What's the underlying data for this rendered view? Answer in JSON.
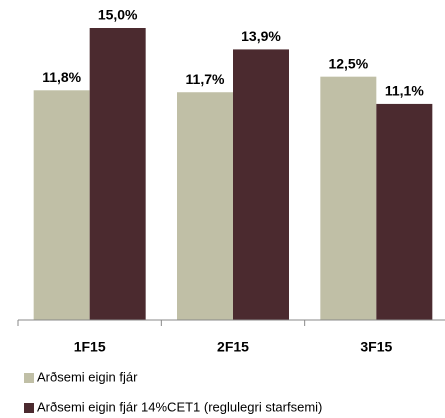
{
  "chart_data": {
    "type": "bar",
    "categories": [
      "1F15",
      "2F15",
      "3F15"
    ],
    "series": [
      {
        "name": "Arðsemi eigin fjár",
        "color": "#c0bfa6",
        "values": [
          11.8,
          11.7,
          12.5
        ],
        "value_labels": [
          "11,8%",
          "11,7%",
          "12,5%"
        ]
      },
      {
        "name": "Arðsemi eigin fjár 14%CET1 (reglulegri starfsemi)",
        "color": "#4b2a2f",
        "values": [
          15.0,
          13.9,
          11.1
        ],
        "value_labels": [
          "15,0%",
          "13,9%",
          "11,1%"
        ]
      }
    ]
  }
}
